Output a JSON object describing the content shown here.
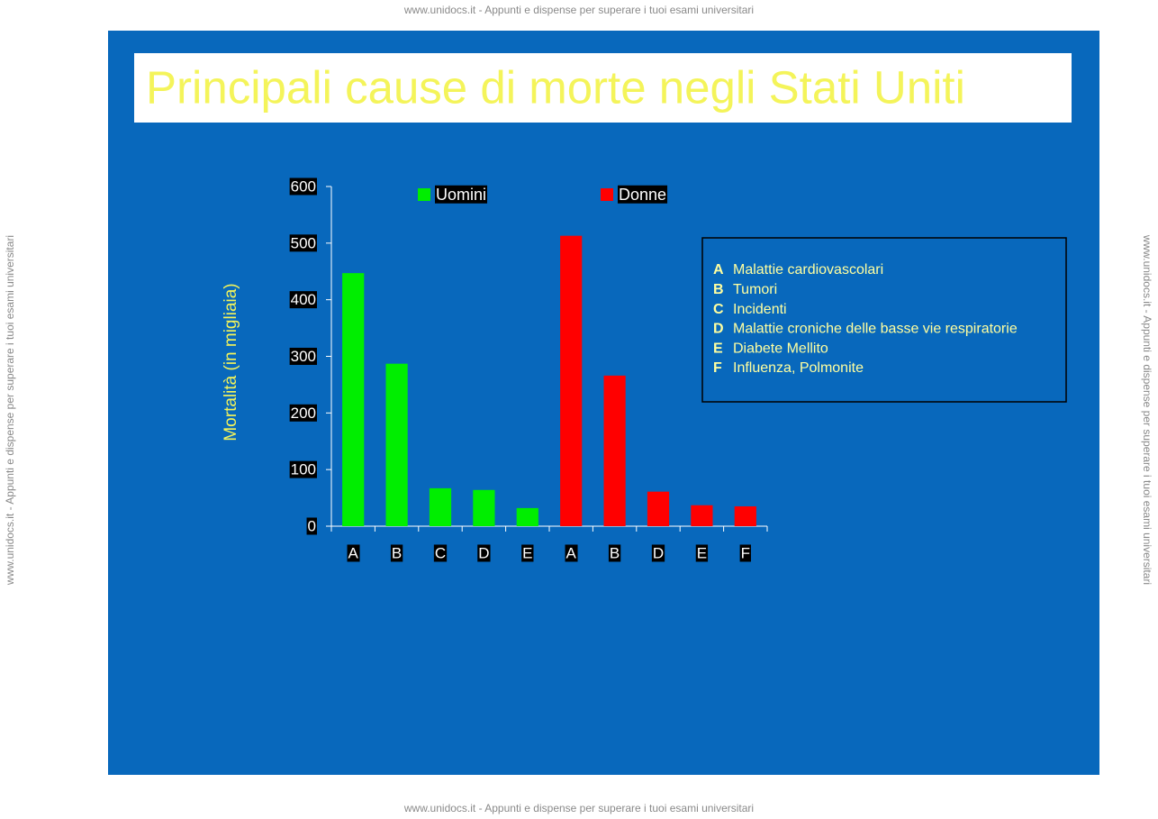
{
  "watermark": "www.unidocs.it - Appunti e dispense per superare i tuoi esami universitari",
  "chart_data": {
    "type": "bar",
    "title": "Principali cause di morte negli Stati Uniti",
    "y_label": "Mortalità (in migliaia)",
    "categories": [
      "A",
      "B",
      "C",
      "D",
      "E",
      "A",
      "B",
      "D",
      "E",
      "F"
    ],
    "series": [
      {
        "name": "Uomini",
        "color": "#00ee00",
        "values": [
          447,
          287,
          67,
          64,
          32,
          null,
          null,
          null,
          null,
          null
        ]
      },
      {
        "name": "Donne",
        "color": "#ff0000",
        "values": [
          null,
          null,
          null,
          null,
          null,
          513,
          266,
          61,
          37,
          35
        ]
      }
    ],
    "ylim": [
      0,
      600
    ],
    "yticks": [
      0,
      100,
      200,
      300,
      400,
      500,
      600
    ],
    "grid": false,
    "key": [
      {
        "letter": "A",
        "label": "Malattie cardiovascolari"
      },
      {
        "letter": "B",
        "label": "Tumori"
      },
      {
        "letter": "C",
        "label": "Incidenti"
      },
      {
        "letter": "D",
        "label": "Malattie croniche delle basse vie respiratorie"
      },
      {
        "letter": "E",
        "label": "Diabete Mellito"
      },
      {
        "letter": "F",
        "label": "Influenza, Polmonite"
      }
    ]
  }
}
